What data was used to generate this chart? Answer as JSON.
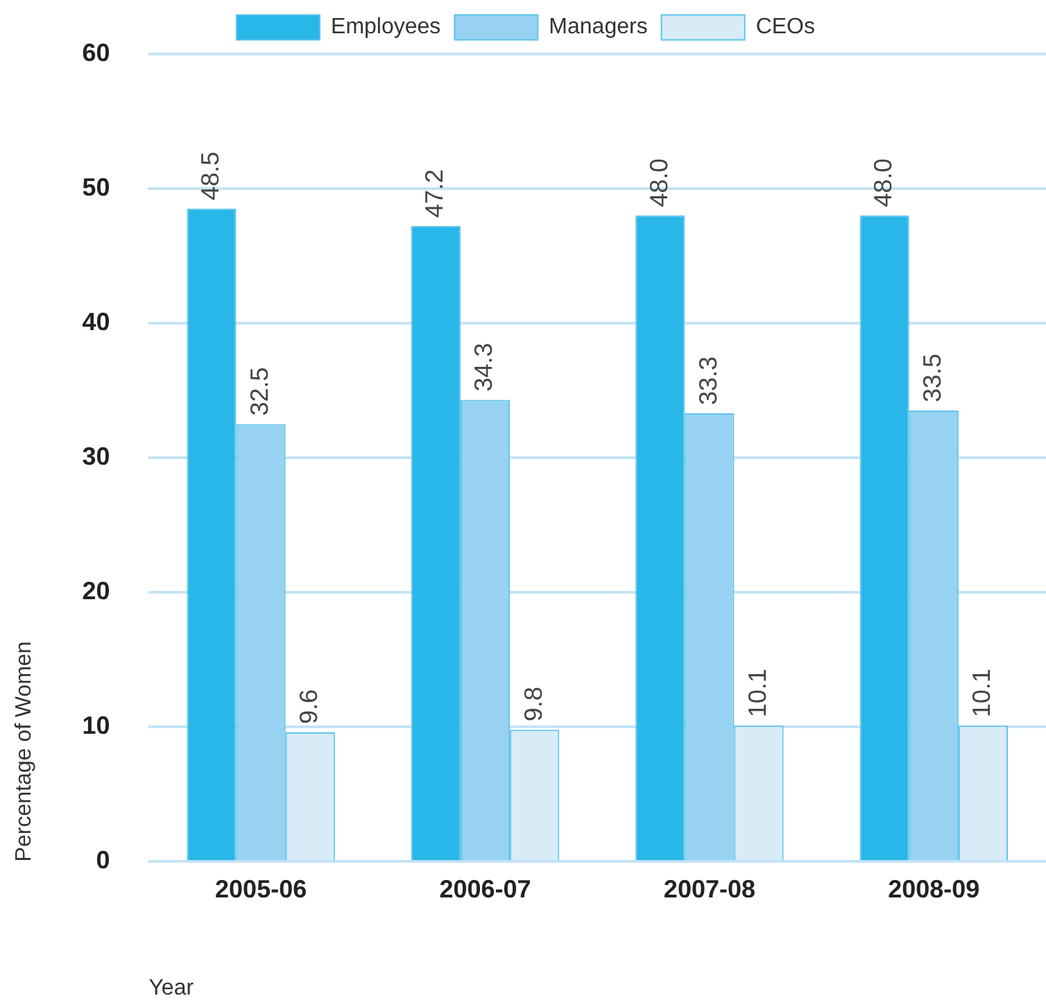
{
  "chart_data": {
    "type": "bar",
    "xlabel": "Year",
    "ylabel": "Percentage of Women",
    "categories": [
      "2005-06",
      "2006-07",
      "2007-08",
      "2008-09"
    ],
    "series": [
      {
        "name": "Employees",
        "color": "#29b6e9",
        "values": [
          48.5,
          47.2,
          48.0,
          48.0
        ],
        "value_labels": [
          "48.5",
          "47.2",
          "48.0",
          "48.0"
        ]
      },
      {
        "name": "Managers",
        "color": "#97d2f1",
        "values": [
          32.5,
          34.3,
          33.3,
          33.5
        ],
        "value_labels": [
          "32.5",
          "34.3",
          "33.3",
          "33.5"
        ]
      },
      {
        "name": "CEOs",
        "color": "#d8ecf8",
        "values": [
          9.6,
          9.8,
          10.1,
          10.1
        ],
        "value_labels": [
          "9.6",
          "9.8",
          "10.1",
          "10.1"
        ]
      }
    ],
    "ylim": [
      0,
      60
    ],
    "yticks": [
      0,
      10,
      20,
      30,
      40,
      50,
      60
    ],
    "grid": "y",
    "legend": "top"
  }
}
